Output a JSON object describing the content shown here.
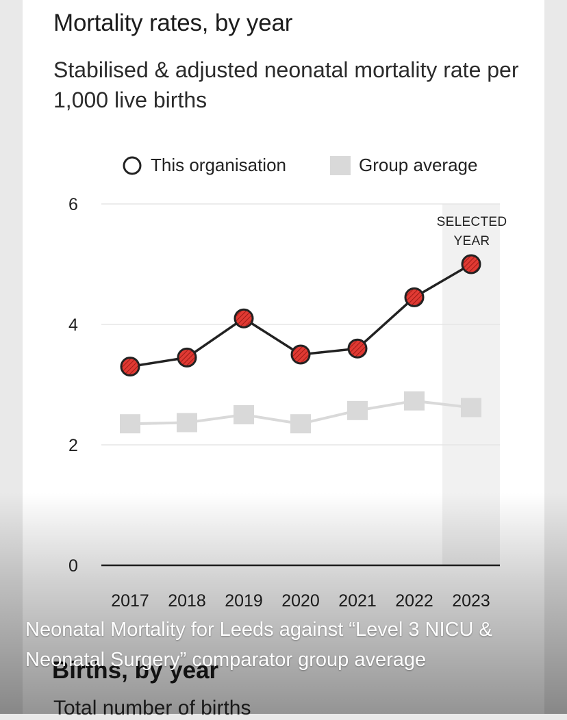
{
  "chart_data": {
    "type": "line",
    "title": "Mortality rates, by year",
    "subtitle": "Stabilised & adjusted neonatal mortality rate per 1,000 live births",
    "categories": [
      "2017",
      "2018",
      "2019",
      "2020",
      "2021",
      "2022",
      "2023"
    ],
    "series": [
      {
        "name": "This organisation",
        "values": [
          3.3,
          3.45,
          4.1,
          3.5,
          3.6,
          4.45,
          5.0
        ],
        "color": "#d9302c",
        "marker": "hatched-circle"
      },
      {
        "name": "Group average",
        "values": [
          2.35,
          2.37,
          2.5,
          2.35,
          2.57,
          2.73,
          2.62
        ],
        "color": "#d9d9d9",
        "marker": "square"
      }
    ],
    "ylim": [
      0,
      6
    ],
    "yticks": [
      "0",
      "2",
      "4",
      "6"
    ],
    "grid": true,
    "legend_position": "top",
    "highlight": {
      "category": "2023",
      "label_line1": "SELECTED",
      "label_line2": "YEAR"
    }
  },
  "next_section": {
    "title": "Births, by year",
    "subtitle": "Total number of births"
  },
  "caption": "Neonatal Mortality for Leeds  against “Level 3 NICU & Neonatal Surgery” comparator group average"
}
